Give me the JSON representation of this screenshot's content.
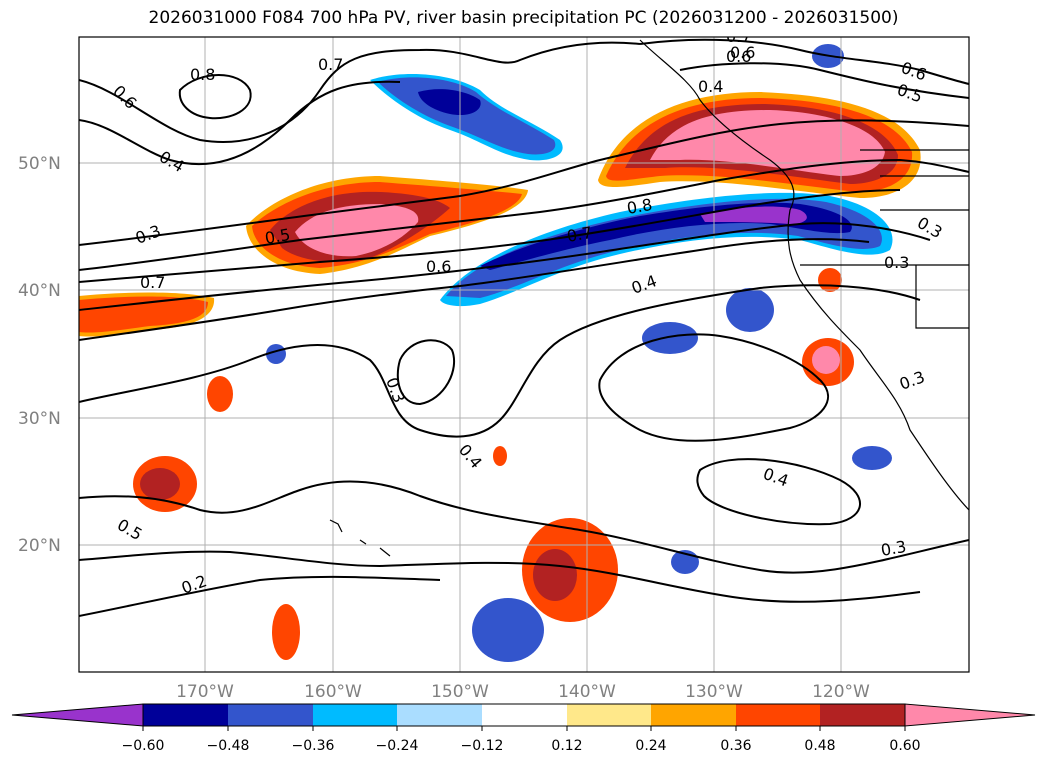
{
  "title": "2026031000 F084 700 hPa PV, river basin precipitation PC (2026031200 - 2026031500)",
  "latitude_labels": [
    "50°N",
    "40°N",
    "30°N",
    "20°N"
  ],
  "longitude_labels": [
    "170°W",
    "160°W",
    "150°W",
    "140°W",
    "130°W",
    "120°W"
  ],
  "colorbar": {
    "ticks": [
      "−0.60",
      "−0.48",
      "−0.36",
      "−0.24",
      "−0.12",
      "0.12",
      "0.24",
      "0.36",
      "0.48",
      "0.60"
    ],
    "colors": [
      "#9933cc",
      "#000099",
      "#3355cc",
      "#00bbff",
      "#aaddff",
      "#ffffff",
      "#ffe88a",
      "#ffa500",
      "#ff4500",
      "#b22222",
      "#ff88aa"
    ]
  },
  "contour_labels": [
    "0.6",
    "0.8",
    "0.7",
    "0.4",
    "0.3",
    "0.5",
    "0.7",
    "0.6",
    "0.3",
    "0.4",
    "0.5",
    "0.2",
    "0.8",
    "0.7",
    "0.6",
    "0.4",
    "0.7",
    "0.6",
    "0.4",
    "0.5",
    "0.6",
    "0.3",
    "0.3",
    "0.4",
    "0.3",
    "0.3"
  ],
  "line_color": "#000000",
  "grid_color": "#b0b0b0"
}
